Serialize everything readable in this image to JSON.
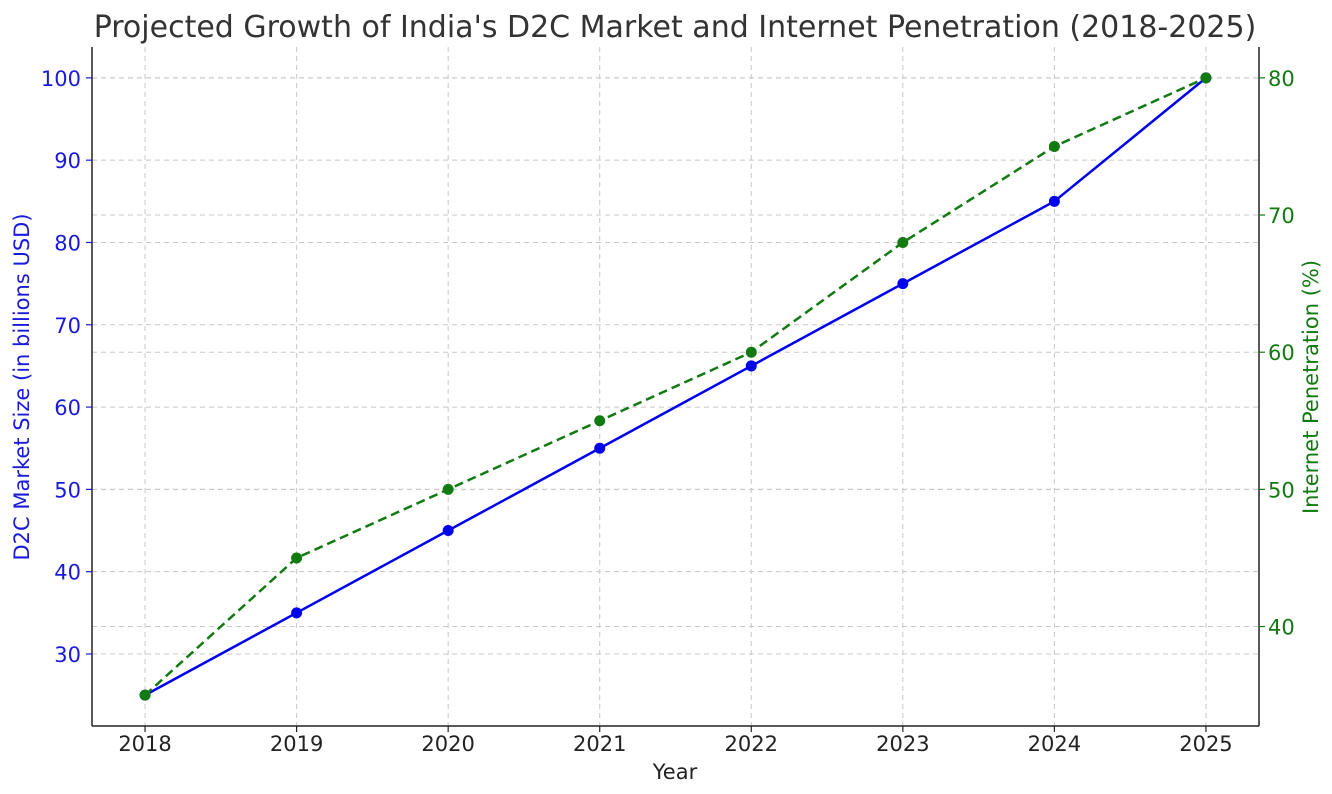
{
  "chart_data": {
    "type": "line",
    "title": "Projected Growth of India's D2C Market and Internet Penetration (2018-2025)",
    "xlabel": "Year",
    "ylabel": "D2C Market Size (in billions USD)",
    "y2label": "Internet Penetration (%)",
    "categories": [
      "2018",
      "2019",
      "2020",
      "2021",
      "2022",
      "2023",
      "2024",
      "2025"
    ],
    "x": [
      2018,
      2019,
      2020,
      2021,
      2022,
      2023,
      2024,
      2025
    ],
    "ylim": [
      21.25,
      103.75
    ],
    "y2lim": [
      32.75,
      82.25
    ],
    "yticks": [
      30,
      40,
      50,
      60,
      70,
      80,
      90,
      100
    ],
    "y2ticks": [
      40,
      50,
      60,
      70,
      80
    ],
    "grid": true,
    "series": [
      {
        "name": "D2C Market Size (in billions USD)",
        "axis": "left",
        "color": "#0000ee",
        "linestyle": "solid",
        "marker": "circle",
        "values": [
          25,
          35,
          45,
          55,
          65,
          75,
          85,
          100
        ]
      },
      {
        "name": "Internet Penetration (%)",
        "axis": "right",
        "color": "#117a11",
        "linestyle": "dashed",
        "marker": "circle",
        "values": [
          35,
          45,
          50,
          55,
          60,
          68,
          75,
          80
        ]
      }
    ]
  },
  "colors": {
    "left_axis": "#1a1adb",
    "right_axis": "#117a11",
    "axis_line": "#222222",
    "title": "#333333",
    "grid": "#c8c8c8"
  }
}
